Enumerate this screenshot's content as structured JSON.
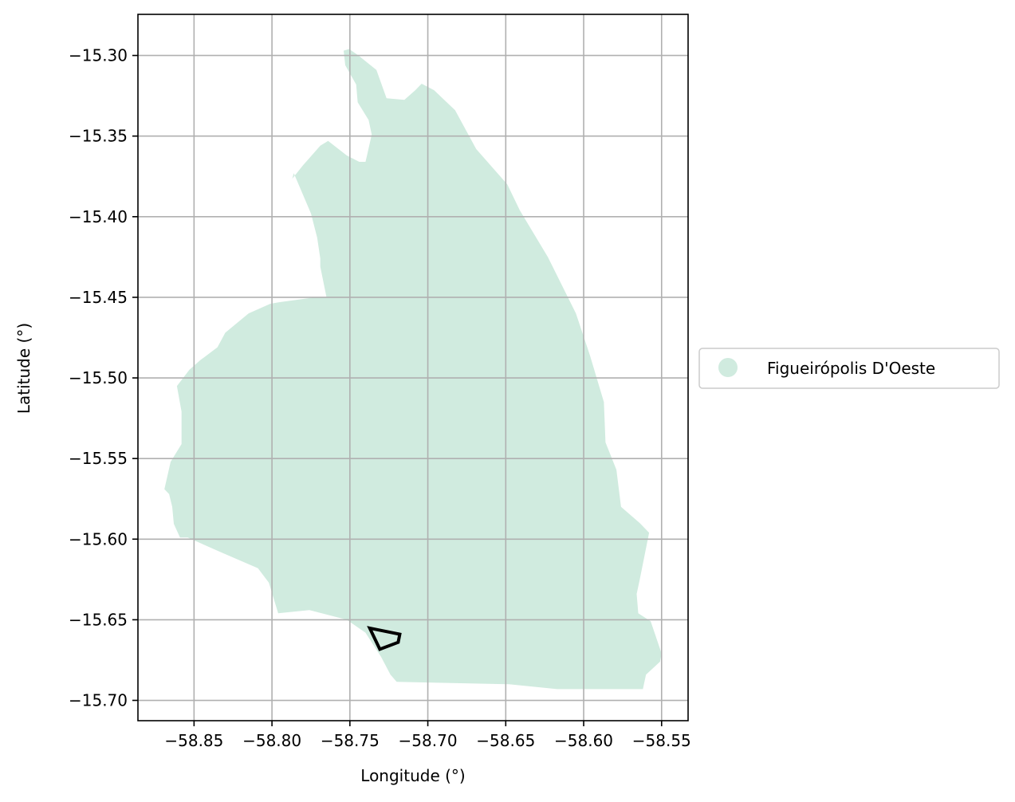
{
  "chart_data": {
    "type": "map",
    "xlabel": "Longitude (°)",
    "ylabel": "Latitude (°)",
    "xlim": [
      -58.886,
      -58.533
    ],
    "ylim": [
      -15.7126,
      -15.2745
    ],
    "grid": true,
    "x_ticks": [
      {
        "value": -58.85,
        "label": "−58.85"
      },
      {
        "value": -58.8,
        "label": "−58.80"
      },
      {
        "value": -58.75,
        "label": "−58.75"
      },
      {
        "value": -58.7,
        "label": "−58.70"
      },
      {
        "value": -58.65,
        "label": "−58.65"
      },
      {
        "value": -58.6,
        "label": "−58.60"
      },
      {
        "value": -58.55,
        "label": "−58.55"
      }
    ],
    "y_ticks": [
      {
        "value": -15.3,
        "label": "−15.30"
      },
      {
        "value": -15.35,
        "label": "−15.35"
      },
      {
        "value": -15.4,
        "label": "−15.40"
      },
      {
        "value": -15.45,
        "label": "−15.45"
      },
      {
        "value": -15.5,
        "label": "−15.50"
      },
      {
        "value": -15.55,
        "label": "−15.55"
      },
      {
        "value": -15.6,
        "label": "−15.60"
      },
      {
        "value": -15.65,
        "label": "−15.65"
      },
      {
        "value": -15.7,
        "label": "−15.70"
      }
    ],
    "legend_position": "right",
    "legend_entries": [
      {
        "label": "Figueirópolis D'Oeste",
        "color": "#d0ebdf",
        "marker": "circle"
      }
    ],
    "regions": [
      {
        "name": "Figueirópolis D'Oeste",
        "fill": "#d0ebdf",
        "coordinates": [
          [
            -58.7505,
            -15.296
          ],
          [
            -58.7445,
            -15.3
          ],
          [
            -58.733,
            -15.309
          ],
          [
            -58.7265,
            -15.3265
          ],
          [
            -58.715,
            -15.3275
          ],
          [
            -58.708,
            -15.3215
          ],
          [
            -58.704,
            -15.3175
          ],
          [
            -58.696,
            -15.3215
          ],
          [
            -58.6825,
            -15.334
          ],
          [
            -58.669,
            -15.358
          ],
          [
            -58.649,
            -15.38
          ],
          [
            -58.641,
            -15.396
          ],
          [
            -58.623,
            -15.425
          ],
          [
            -58.605,
            -15.46
          ],
          [
            -58.596,
            -15.486
          ],
          [
            -58.587,
            -15.515
          ],
          [
            -58.586,
            -15.54
          ],
          [
            -58.579,
            -15.557
          ],
          [
            -58.576,
            -15.58
          ],
          [
            -58.564,
            -15.59
          ],
          [
            -58.558,
            -15.596
          ],
          [
            -58.564,
            -15.625
          ],
          [
            -58.566,
            -15.634
          ],
          [
            -58.565,
            -15.646
          ],
          [
            -58.557,
            -15.651
          ],
          [
            -58.55,
            -15.671
          ],
          [
            -58.551,
            -15.676
          ],
          [
            -58.56,
            -15.684
          ],
          [
            -58.562,
            -15.693
          ],
          [
            -58.617,
            -15.693
          ],
          [
            -58.648,
            -15.69
          ],
          [
            -58.72,
            -15.6885
          ],
          [
            -58.724,
            -15.684
          ],
          [
            -58.73,
            -15.673
          ],
          [
            -58.74,
            -15.658
          ],
          [
            -58.752,
            -15.65
          ],
          [
            -58.776,
            -15.644
          ],
          [
            -58.796,
            -15.646
          ],
          [
            -58.802,
            -15.627
          ],
          [
            -58.809,
            -15.618
          ],
          [
            -58.833,
            -15.608
          ],
          [
            -58.854,
            -15.599
          ],
          [
            -58.859,
            -15.599
          ],
          [
            -58.863,
            -15.5905
          ],
          [
            -58.864,
            -15.58
          ],
          [
            -58.866,
            -15.572
          ],
          [
            -58.869,
            -15.569
          ],
          [
            -58.865,
            -15.552
          ],
          [
            -58.858,
            -15.541
          ],
          [
            -58.858,
            -15.521
          ],
          [
            -58.861,
            -15.505
          ],
          [
            -58.853,
            -15.495
          ],
          [
            -58.846,
            -15.489
          ],
          [
            -58.835,
            -15.481
          ],
          [
            -58.83,
            -15.472
          ],
          [
            -58.815,
            -15.46
          ],
          [
            -58.801,
            -15.454
          ],
          [
            -58.795,
            -15.453
          ],
          [
            -58.772,
            -15.45
          ],
          [
            -58.765,
            -15.45
          ],
          [
            -58.769,
            -15.431
          ],
          [
            -58.769,
            -15.426
          ],
          [
            -58.771,
            -15.413
          ],
          [
            -58.775,
            -15.398
          ],
          [
            -58.786,
            -15.373
          ],
          [
            -58.787,
            -15.3765
          ],
          [
            -58.78,
            -15.368
          ],
          [
            -58.769,
            -15.356
          ],
          [
            -58.764,
            -15.353
          ],
          [
            -58.752,
            -15.362
          ],
          [
            -58.744,
            -15.366
          ],
          [
            -58.74,
            -15.366
          ],
          [
            -58.739,
            -15.362
          ],
          [
            -58.736,
            -15.349
          ],
          [
            -58.738,
            -15.34
          ],
          [
            -58.745,
            -15.329
          ],
          [
            -58.746,
            -15.318
          ],
          [
            -58.753,
            -15.306
          ],
          [
            -58.754,
            -15.297
          ]
        ]
      }
    ],
    "outlines": [
      {
        "stroke": "#000000",
        "coordinates": [
          [
            -58.7373,
            -15.6552
          ],
          [
            -58.718,
            -15.659
          ],
          [
            -58.719,
            -15.664
          ],
          [
            -58.7308,
            -15.6683
          ]
        ]
      }
    ]
  }
}
